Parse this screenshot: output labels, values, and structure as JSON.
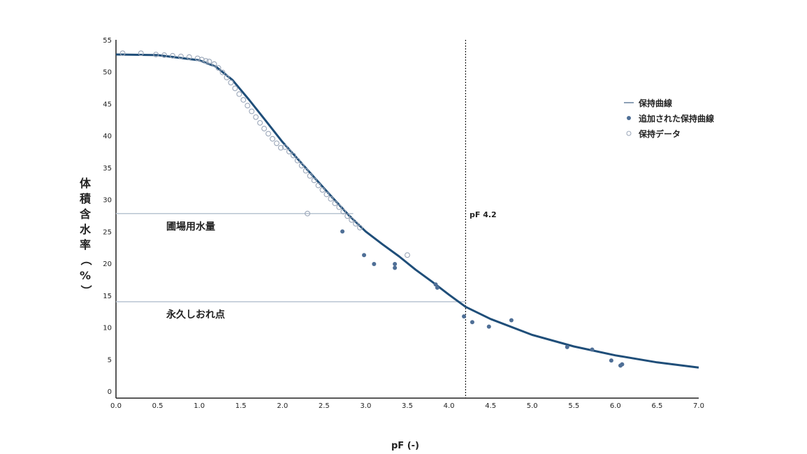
{
  "chart_data": {
    "type": "scatter",
    "xlabel": "pF (-)",
    "ylabel": "体積含水率（%）",
    "xlim": [
      0,
      7
    ],
    "ylim": [
      0,
      55
    ],
    "x_ticks": [
      "0.0",
      "0.5",
      "1.0",
      "1.5",
      "2.0",
      "2.5",
      "3.0",
      "3.5",
      "4.0",
      "4.5",
      "5.0",
      "5.5",
      "6.0",
      "6.5",
      "7.0"
    ],
    "y_ticks": [
      "0",
      "5",
      "10",
      "15",
      "20",
      "25",
      "30",
      "35",
      "40",
      "45",
      "50",
      "55"
    ],
    "grid": false,
    "legend_position": "top-right",
    "legend": [
      "保持曲線",
      "追加された保持曲線",
      "保持データ"
    ],
    "series": [
      {
        "name": "保持曲線",
        "kind": "line",
        "color": "#1f4e79",
        "x": [
          0,
          0.5,
          1.0,
          1.2,
          1.4,
          1.6,
          1.8,
          2.0,
          2.2,
          2.4,
          2.6,
          2.8,
          3.0,
          3.2,
          3.4,
          3.6,
          3.8,
          4.0,
          4.2,
          4.5,
          5.0,
          5.5,
          6.0,
          6.5,
          7.0
        ],
        "y": [
          52.7,
          52.6,
          51.8,
          50.8,
          48.7,
          45.6,
          42.3,
          39.0,
          36.1,
          33.2,
          30.3,
          27.5,
          25.0,
          23.0,
          21.1,
          19.0,
          17.1,
          15.1,
          13.2,
          11.3,
          8.8,
          7.0,
          5.6,
          4.5,
          3.7
        ]
      },
      {
        "name": "追加された保持曲線",
        "kind": "points",
        "color": "#4f6f96",
        "x": [
          2.72,
          2.98,
          3.1,
          3.35,
          3.35,
          3.84,
          3.86,
          4.18,
          4.28,
          4.48,
          4.75,
          5.42,
          5.72,
          5.95,
          6.06,
          6.08
        ],
        "y": [
          25.0,
          21.3,
          19.9,
          19.9,
          19.3,
          16.7,
          16.2,
          11.7,
          10.8,
          10.1,
          11.1,
          6.9,
          6.5,
          4.8,
          4.0,
          4.2
        ]
      },
      {
        "name": "保持データ",
        "kind": "points",
        "color": "#9aa6b8",
        "x": [
          0.08,
          0.3,
          0.48,
          0.58,
          0.68,
          0.78,
          0.88,
          0.98,
          1.03,
          1.08,
          1.12,
          1.18,
          1.23,
          1.28,
          1.33,
          1.38,
          1.43,
          1.48,
          1.53,
          1.58,
          1.63,
          1.68,
          1.73,
          1.78,
          1.83,
          1.88,
          1.93,
          1.98,
          2.03,
          2.08,
          2.13,
          2.18,
          2.23,
          2.28,
          2.33,
          2.38,
          2.43,
          2.48,
          2.53,
          2.58,
          2.63,
          2.68,
          2.73,
          2.78,
          2.83,
          2.88,
          2.93,
          2.3,
          3.5
        ],
        "y": [
          52.9,
          52.9,
          52.7,
          52.6,
          52.5,
          52.4,
          52.3,
          52.1,
          51.9,
          51.7,
          51.6,
          51.2,
          50.6,
          49.9,
          49.1,
          48.3,
          47.4,
          46.5,
          45.6,
          44.7,
          43.8,
          42.9,
          42.0,
          41.1,
          40.3,
          39.5,
          38.8,
          38.1,
          38.2,
          37.5,
          36.9,
          36.1,
          35.3,
          34.5,
          33.7,
          33.0,
          32.2,
          31.5,
          30.8,
          30.1,
          29.4,
          28.8,
          28.1,
          27.4,
          26.8,
          26.2,
          25.6,
          27.8,
          21.3
        ]
      }
    ],
    "reference_lines": [
      {
        "label": "圃場用水量",
        "y": 27.8,
        "x_end": 2.85,
        "orientation": "horizontal"
      },
      {
        "label": "永久しおれ点",
        "y": 14.0,
        "x_end": 4.2,
        "orientation": "horizontal"
      },
      {
        "label": "pF 4.2",
        "x": 4.2,
        "orientation": "vertical",
        "style": "dotted"
      }
    ]
  },
  "colors": {
    "curve": "#1f4e79",
    "added_points": "#4f6f96",
    "data_points": "#9aa6b8",
    "reference_line": "#b8c4d2",
    "legend_line": "#8da0b6"
  }
}
